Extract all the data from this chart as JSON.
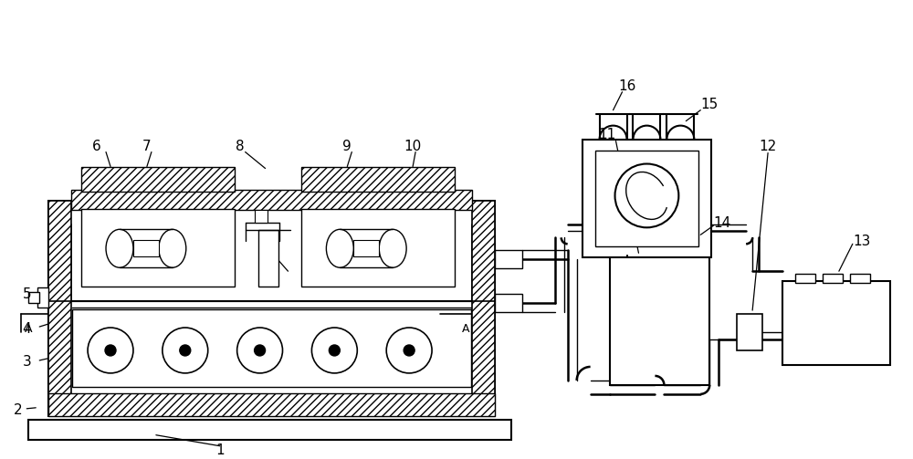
{
  "bg_color": "#ffffff",
  "line_color": "#000000",
  "fig_width": 10.0,
  "fig_height": 5.03
}
